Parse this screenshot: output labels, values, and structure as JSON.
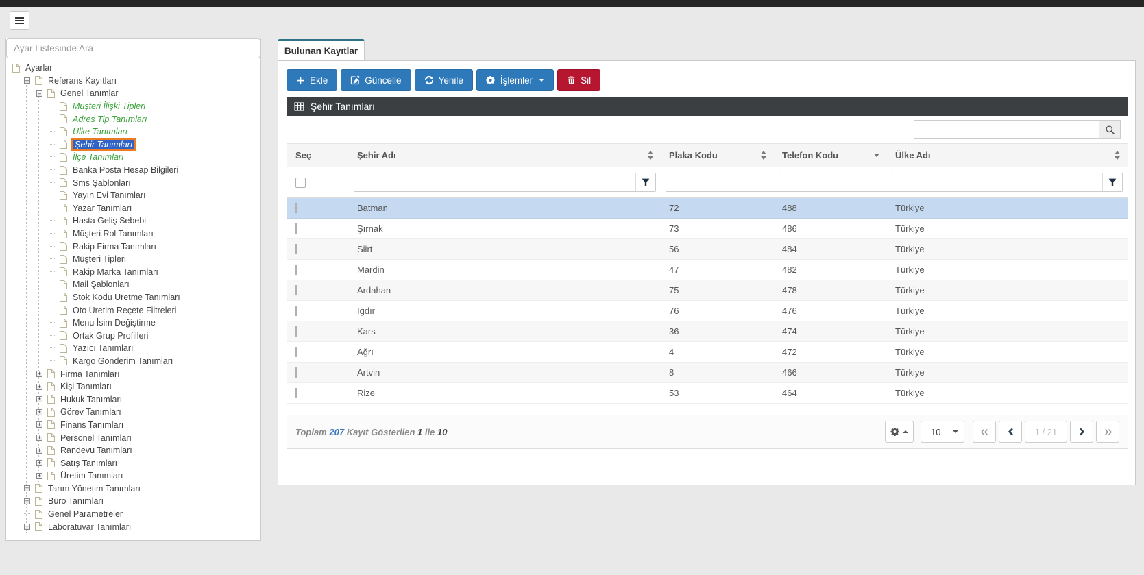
{
  "sidebar": {
    "search_placeholder": "Ayar Listesinde Ara",
    "tree": [
      {
        "label": "Ayarlar",
        "level": 0,
        "variant": "normal",
        "expander": "none"
      },
      {
        "label": "Referans Kayıtları",
        "level": 1,
        "variant": "normal",
        "expander": "minus"
      },
      {
        "label": "Genel Tanımlar",
        "level": 2,
        "variant": "normal",
        "expander": "minus"
      },
      {
        "label": "Müşteri İlişki Tipleri",
        "level": 3,
        "variant": "green",
        "expander": "none"
      },
      {
        "label": "Adres Tip Tanımları",
        "level": 3,
        "variant": "green",
        "expander": "none"
      },
      {
        "label": "Ülke Tanımları",
        "level": 3,
        "variant": "green",
        "expander": "none"
      },
      {
        "label": "Şehir Tanımları",
        "level": 3,
        "variant": "selected",
        "expander": "none"
      },
      {
        "label": "İlçe Tanımları",
        "level": 3,
        "variant": "green",
        "expander": "none"
      },
      {
        "label": "Banka Posta Hesap Bilgileri",
        "level": 3,
        "variant": "normal",
        "expander": "none"
      },
      {
        "label": "Sms Şablonları",
        "level": 3,
        "variant": "normal",
        "expander": "none"
      },
      {
        "label": "Yayın Evi Tanımları",
        "level": 3,
        "variant": "normal",
        "expander": "none"
      },
      {
        "label": "Yazar Tanımları",
        "level": 3,
        "variant": "normal",
        "expander": "none"
      },
      {
        "label": "Hasta Geliş Sebebi",
        "level": 3,
        "variant": "normal",
        "expander": "none"
      },
      {
        "label": "Müşteri Rol Tanımları",
        "level": 3,
        "variant": "normal",
        "expander": "none"
      },
      {
        "label": "Rakip Firma Tanımları",
        "level": 3,
        "variant": "normal",
        "expander": "none"
      },
      {
        "label": "Müşteri Tipleri",
        "level": 3,
        "variant": "normal",
        "expander": "none"
      },
      {
        "label": "Rakip Marka Tanımları",
        "level": 3,
        "variant": "normal",
        "expander": "none"
      },
      {
        "label": "Mail Şablonları",
        "level": 3,
        "variant": "normal",
        "expander": "none"
      },
      {
        "label": "Stok Kodu Üretme Tanımları",
        "level": 3,
        "variant": "normal",
        "expander": "none"
      },
      {
        "label": "Oto Üretim Reçete Filtreleri",
        "level": 3,
        "variant": "normal",
        "expander": "none"
      },
      {
        "label": "Menu İsim Değiştirme",
        "level": 3,
        "variant": "normal",
        "expander": "none"
      },
      {
        "label": "Ortak Grup Profilleri",
        "level": 3,
        "variant": "normal",
        "expander": "none"
      },
      {
        "label": "Yazıcı Tanımları",
        "level": 3,
        "variant": "normal",
        "expander": "none"
      },
      {
        "label": "Kargo Gönderim Tanımları",
        "level": 3,
        "variant": "normal",
        "expander": "none"
      },
      {
        "label": "Firma Tanımları",
        "level": 2,
        "variant": "normal",
        "expander": "plus"
      },
      {
        "label": "Kişi Tanımları",
        "level": 2,
        "variant": "normal",
        "expander": "plus"
      },
      {
        "label": "Hukuk Tanımları",
        "level": 2,
        "variant": "normal",
        "expander": "plus"
      },
      {
        "label": "Görev Tanımları",
        "level": 2,
        "variant": "normal",
        "expander": "plus"
      },
      {
        "label": "Finans Tanımları",
        "level": 2,
        "variant": "normal",
        "expander": "plus"
      },
      {
        "label": "Personel Tanımları",
        "level": 2,
        "variant": "normal",
        "expander": "plus"
      },
      {
        "label": "Randevu Tanımları",
        "level": 2,
        "variant": "normal",
        "expander": "plus"
      },
      {
        "label": "Satış Tanımları",
        "level": 2,
        "variant": "normal",
        "expander": "plus"
      },
      {
        "label": "Üretim Tanımları",
        "level": 2,
        "variant": "normal",
        "expander": "plus"
      },
      {
        "label": "Tarım Yönetim Tanımları",
        "level": 1,
        "variant": "normal",
        "expander": "plus"
      },
      {
        "label": "Büro Tanımları",
        "level": 1,
        "variant": "normal",
        "expander": "plus"
      },
      {
        "label": "Genel Parametreler",
        "level": 1,
        "variant": "normal",
        "expander": "none"
      },
      {
        "label": "Laboratuvar Tanımları",
        "level": 1,
        "variant": "normal",
        "expander": "plus"
      }
    ]
  },
  "main": {
    "tab_label": "Bulunan Kayıtlar",
    "toolbar": {
      "add_label": "Ekle",
      "update_label": "Güncelle",
      "refresh_label": "Yenile",
      "operations_label": "İşlemler",
      "delete_label": "Sil"
    },
    "panel_title": "Şehir Tanımları",
    "grid": {
      "search_value": "",
      "columns": [
        {
          "label": "Seç",
          "sort": "none"
        },
        {
          "label": "Şehir Adı",
          "sort": "both"
        },
        {
          "label": "Plaka Kodu",
          "sort": "both"
        },
        {
          "label": "Telefon Kodu",
          "sort": "desc"
        },
        {
          "label": "Ülke Adı",
          "sort": "both"
        }
      ],
      "filters": {
        "city": "",
        "plate": "",
        "phone": "",
        "country": ""
      },
      "rows": [
        {
          "city": "Batman",
          "plate": "72",
          "phone": "488",
          "country": "Türkiye",
          "selected": true
        },
        {
          "city": "Şırnak",
          "plate": "73",
          "phone": "486",
          "country": "Türkiye",
          "selected": false
        },
        {
          "city": "Siirt",
          "plate": "56",
          "phone": "484",
          "country": "Türkiye",
          "selected": false
        },
        {
          "city": "Mardin",
          "plate": "47",
          "phone": "482",
          "country": "Türkiye",
          "selected": false
        },
        {
          "city": "Ardahan",
          "plate": "75",
          "phone": "478",
          "country": "Türkiye",
          "selected": false
        },
        {
          "city": "Iğdır",
          "plate": "76",
          "phone": "476",
          "country": "Türkiye",
          "selected": false
        },
        {
          "city": "Kars",
          "plate": "36",
          "phone": "474",
          "country": "Türkiye",
          "selected": false
        },
        {
          "city": "Ağrı",
          "plate": "4",
          "phone": "472",
          "country": "Türkiye",
          "selected": false
        },
        {
          "city": "Artvin",
          "plate": "8",
          "phone": "466",
          "country": "Türkiye",
          "selected": false
        },
        {
          "city": "Rize",
          "plate": "53",
          "phone": "464",
          "country": "Türkiye",
          "selected": false
        }
      ]
    },
    "footer": {
      "summary": {
        "prefix": "Toplam",
        "total": "207",
        "middle": "Kayıt Gösterilen",
        "from": "1",
        "separator": "ile",
        "to": "10"
      },
      "page_size": "10",
      "page_indicator": "1 / 21"
    }
  },
  "icons": {
    "menu": "hamburger",
    "add": "plus",
    "update": "pencil-square",
    "refresh": "circular-arrows",
    "operations": "gear",
    "delete": "trash",
    "panel_title": "table-grid",
    "search": "magnifier",
    "filter": "funnel",
    "sort": "up-down-arrows",
    "sorted_desc": "down-caret",
    "pager": [
      "double-chevron-left",
      "chevron-left",
      "chevron-right",
      "double-chevron-right"
    ]
  },
  "colors": {
    "accent_blue": "#2e79b9",
    "danger_red": "#b6162f",
    "tab_accent": "#2e7287",
    "grid_header_dark": "#3c3f42",
    "selected_row": "#c5daf0",
    "tree_selected_bg": "#2f63c7",
    "tree_selected_border": "#ea7d22",
    "tree_link_green": "#3aa23a",
    "total_count_blue": "#3b78be",
    "topbar": "#262626"
  }
}
